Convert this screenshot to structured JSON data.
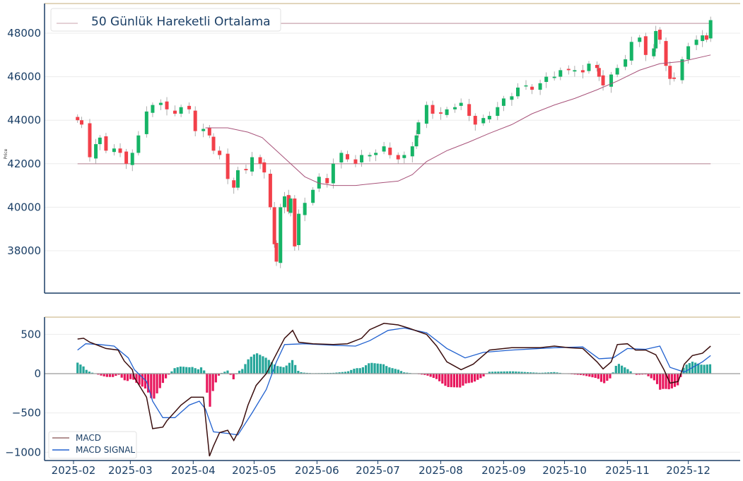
{
  "chart_data": [
    {
      "type": "candlestick",
      "title": "50 Günlük Hareketli Ortalama",
      "ylabel": "Price",
      "ylim": [
        36400,
        49200
      ],
      "yticks": [
        38000,
        40000,
        42000,
        44000,
        46000,
        48000
      ],
      "x_unit": "day_of_year_2025",
      "closes": [
        [
          34,
          44000
        ],
        [
          36,
          43800
        ],
        [
          40,
          42300
        ],
        [
          43,
          42900
        ],
        [
          45,
          43200
        ],
        [
          48,
          42600
        ],
        [
          52,
          42700
        ],
        [
          55,
          42500
        ],
        [
          58,
          42000
        ],
        [
          61,
          42500
        ],
        [
          64,
          43300
        ],
        [
          68,
          44400
        ],
        [
          71,
          44700
        ],
        [
          75,
          44800
        ],
        [
          78,
          44500
        ],
        [
          82,
          44300
        ],
        [
          85,
          44600
        ],
        [
          89,
          44500
        ],
        [
          92,
          43500
        ],
        [
          96,
          43600
        ],
        [
          99,
          43300
        ],
        [
          101,
          42600
        ],
        [
          104,
          42400
        ],
        [
          108,
          41300
        ],
        [
          111,
          40900
        ],
        [
          113,
          41700
        ],
        [
          117,
          41700
        ],
        [
          120,
          42300
        ],
        [
          124,
          42000
        ],
        [
          126,
          41600
        ],
        [
          129,
          40000
        ],
        [
          131,
          38300
        ],
        [
          132,
          37500
        ],
        [
          134,
          40000
        ],
        [
          136,
          40500
        ],
        [
          138,
          39800
        ],
        [
          139,
          40400
        ],
        [
          141,
          38200
        ],
        [
          143,
          39700
        ],
        [
          146,
          40200
        ],
        [
          150,
          40800
        ],
        [
          153,
          41400
        ],
        [
          157,
          41100
        ],
        [
          160,
          42000
        ],
        [
          164,
          42500
        ],
        [
          167,
          42200
        ],
        [
          171,
          42000
        ],
        [
          174,
          42400
        ],
        [
          178,
          42400
        ],
        [
          181,
          42500
        ],
        [
          185,
          42800
        ],
        [
          188,
          42400
        ],
        [
          192,
          42200
        ],
        [
          195,
          42400
        ],
        [
          199,
          42800
        ],
        [
          201,
          43300
        ],
        [
          202,
          43900
        ],
        [
          206,
          44700
        ],
        [
          209,
          44300
        ],
        [
          213,
          44300
        ],
        [
          216,
          44500
        ],
        [
          220,
          44600
        ],
        [
          223,
          44800
        ],
        [
          227,
          44200
        ],
        [
          230,
          43800
        ],
        [
          234,
          44100
        ],
        [
          237,
          44200
        ],
        [
          241,
          44600
        ],
        [
          244,
          45000
        ],
        [
          248,
          45100
        ],
        [
          251,
          45500
        ],
        [
          255,
          45600
        ],
        [
          258,
          45400
        ],
        [
          262,
          45700
        ],
        [
          265,
          46000
        ],
        [
          269,
          46000
        ],
        [
          272,
          46300
        ],
        [
          276,
          46300
        ],
        [
          279,
          46300
        ],
        [
          283,
          46200
        ],
        [
          286,
          46600
        ],
        [
          290,
          46400
        ],
        [
          291,
          46000
        ],
        [
          293,
          45600
        ],
        [
          297,
          46100
        ],
        [
          300,
          46400
        ],
        [
          304,
          46800
        ],
        [
          307,
          47600
        ],
        [
          311,
          47800
        ],
        [
          314,
          47000
        ],
        [
          318,
          47300
        ],
        [
          319,
          48100
        ],
        [
          321,
          47700
        ],
        [
          324,
          46500
        ],
        [
          326,
          45900
        ],
        [
          328,
          45900
        ],
        [
          332,
          46800
        ],
        [
          335,
          47400
        ],
        [
          339,
          47700
        ],
        [
          342,
          47900
        ],
        [
          344,
          47700
        ],
        [
          346,
          48600
        ]
      ],
      "ma50": [
        [
          97,
          43650
        ],
        [
          108,
          43650
        ],
        [
          118,
          43450
        ],
        [
          125,
          43200
        ],
        [
          132,
          42600
        ],
        [
          139,
          42000
        ],
        [
          146,
          41400
        ],
        [
          153,
          41100
        ],
        [
          160,
          41000
        ],
        [
          171,
          41000
        ],
        [
          181,
          41100
        ],
        [
          192,
          41200
        ],
        [
          199,
          41500
        ],
        [
          206,
          42100
        ],
        [
          216,
          42600
        ],
        [
          227,
          43000
        ],
        [
          237,
          43400
        ],
        [
          248,
          43800
        ],
        [
          258,
          44300
        ],
        [
          269,
          44700
        ],
        [
          279,
          45000
        ],
        [
          290,
          45400
        ],
        [
          300,
          45800
        ],
        [
          311,
          46300
        ],
        [
          321,
          46600
        ],
        [
          332,
          46700
        ],
        [
          346,
          47000
        ]
      ],
      "hlines": [
        48450,
        42000
      ],
      "colors": {
        "up": "#16b466",
        "down": "#f2404a",
        "ma": "#a8537a",
        "hline": "#c9a3ae"
      }
    },
    {
      "type": "line+bar",
      "ylim": [
        -1120,
        720
      ],
      "yticks": [
        -1000,
        -500,
        0,
        500
      ],
      "xticks": [
        {
          "label": "2025-02",
          "day": 32
        },
        {
          "label": "2025-03",
          "day": 60
        },
        {
          "label": "2025-04",
          "day": 91
        },
        {
          "label": "2025-05",
          "day": 121
        },
        {
          "label": "2025-06",
          "day": 152
        },
        {
          "label": "2025-07",
          "day": 182
        },
        {
          "label": "2025-08",
          "day": 213
        },
        {
          "label": "2025-09",
          "day": 244
        },
        {
          "label": "2025-10",
          "day": 274
        },
        {
          "label": "2025-11",
          "day": 305
        },
        {
          "label": "2025-12",
          "day": 335
        }
      ],
      "legend": [
        "MACD",
        "MACD SIGNAL"
      ],
      "legend_position": "lower-left",
      "macd": [
        [
          34,
          440
        ],
        [
          37,
          450
        ],
        [
          40,
          400
        ],
        [
          45,
          350
        ],
        [
          48,
          320
        ],
        [
          54,
          300
        ],
        [
          57,
          160
        ],
        [
          61,
          50
        ],
        [
          62,
          -50
        ],
        [
          68,
          -300
        ],
        [
          71,
          -700
        ],
        [
          76,
          -680
        ],
        [
          78,
          -600
        ],
        [
          85,
          -400
        ],
        [
          90,
          -300
        ],
        [
          96,
          -300
        ],
        [
          97,
          -550
        ],
        [
          99,
          -1050
        ],
        [
          101,
          -920
        ],
        [
          104,
          -750
        ],
        [
          108,
          -720
        ],
        [
          111,
          -850
        ],
        [
          115,
          -650
        ],
        [
          118,
          -400
        ],
        [
          122,
          -150
        ],
        [
          127,
          0
        ],
        [
          131,
          200
        ],
        [
          136,
          450
        ],
        [
          140,
          550
        ],
        [
          143,
          400
        ],
        [
          150,
          380
        ],
        [
          160,
          370
        ],
        [
          167,
          380
        ],
        [
          174,
          450
        ],
        [
          178,
          560
        ],
        [
          185,
          640
        ],
        [
          192,
          620
        ],
        [
          197,
          580
        ],
        [
          206,
          500
        ],
        [
          211,
          350
        ],
        [
          216,
          150
        ],
        [
          223,
          50
        ],
        [
          229,
          120
        ],
        [
          237,
          300
        ],
        [
          248,
          330
        ],
        [
          262,
          330
        ],
        [
          269,
          350
        ],
        [
          276,
          330
        ],
        [
          283,
          320
        ],
        [
          290,
          150
        ],
        [
          293,
          60
        ],
        [
          297,
          150
        ],
        [
          300,
          370
        ],
        [
          305,
          380
        ],
        [
          309,
          300
        ],
        [
          314,
          300
        ],
        [
          319,
          240
        ],
        [
          323,
          50
        ],
        [
          326,
          -120
        ],
        [
          330,
          -100
        ],
        [
          333,
          120
        ],
        [
          337,
          230
        ],
        [
          342,
          260
        ],
        [
          346,
          350
        ]
      ],
      "signal": [
        [
          34,
          300
        ],
        [
          38,
          380
        ],
        [
          45,
          370
        ],
        [
          52,
          350
        ],
        [
          59,
          200
        ],
        [
          62,
          50
        ],
        [
          68,
          -100
        ],
        [
          71,
          -350
        ],
        [
          76,
          -560
        ],
        [
          82,
          -560
        ],
        [
          89,
          -400
        ],
        [
          94,
          -350
        ],
        [
          97,
          -450
        ],
        [
          101,
          -740
        ],
        [
          108,
          -760
        ],
        [
          113,
          -780
        ],
        [
          120,
          -500
        ],
        [
          127,
          -200
        ],
        [
          132,
          150
        ],
        [
          136,
          370
        ],
        [
          146,
          380
        ],
        [
          160,
          360
        ],
        [
          171,
          350
        ],
        [
          178,
          420
        ],
        [
          187,
          550
        ],
        [
          195,
          580
        ],
        [
          206,
          520
        ],
        [
          216,
          320
        ],
        [
          225,
          200
        ],
        [
          234,
          270
        ],
        [
          248,
          300
        ],
        [
          269,
          330
        ],
        [
          283,
          340
        ],
        [
          291,
          190
        ],
        [
          298,
          200
        ],
        [
          305,
          320
        ],
        [
          314,
          310
        ],
        [
          321,
          350
        ],
        [
          326,
          80
        ],
        [
          333,
          20
        ],
        [
          342,
          150
        ],
        [
          346,
          230
        ]
      ],
      "colors": {
        "macd": "#3a0d0d",
        "signal": "#2161cf",
        "hist_pos": "#26a69a",
        "hist_neg": "#e8175d"
      }
    }
  ]
}
